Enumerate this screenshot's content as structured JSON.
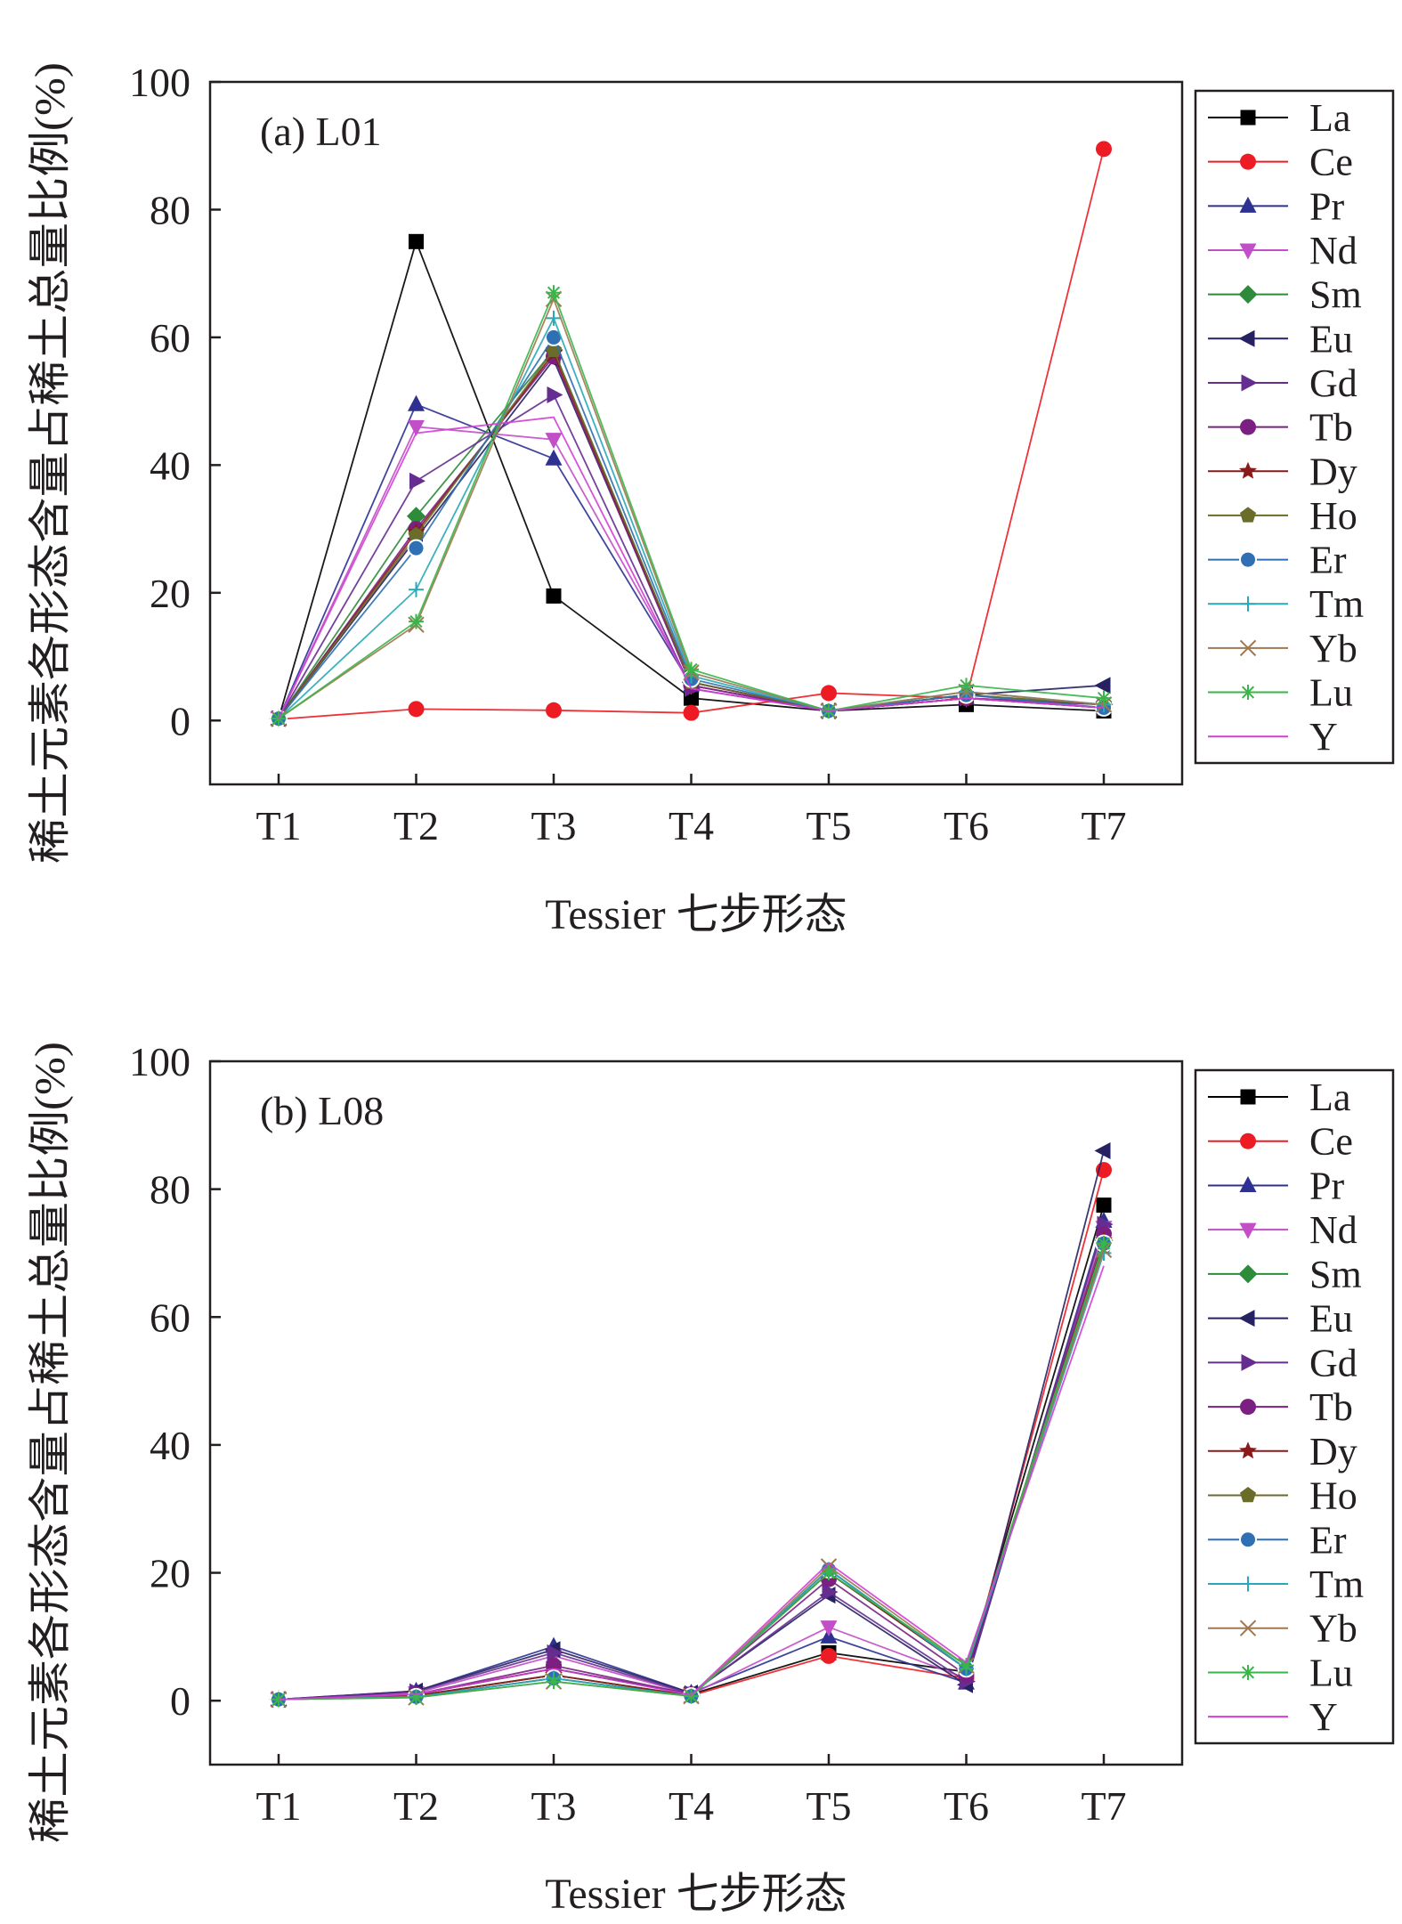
{
  "chart_data": [
    {
      "type": "line",
      "title": "(a) L01",
      "xlabel": "Tessier 七步形态",
      "ylabel": "稀土元素各形态含量占稀土总量比例(%)",
      "categories": [
        "T1",
        "T2",
        "T3",
        "T4",
        "T5",
        "T6",
        "T7"
      ],
      "yticks": [
        "0",
        "20",
        "40",
        "60",
        "80",
        "100"
      ],
      "ylim": [
        -10,
        100
      ],
      "legend_position": "right",
      "series": [
        {
          "name": "La",
          "color": "#000000",
          "marker": "square",
          "values": [
            0.3,
            75,
            19.5,
            3.5,
            1.5,
            2.5,
            1.5
          ]
        },
        {
          "name": "Ce",
          "color": "#ed1c24",
          "marker": "circle",
          "values": [
            0.2,
            1.8,
            1.6,
            1.2,
            4.3,
            3.5,
            89.5
          ]
        },
        {
          "name": "Pr",
          "color": "#2e3192",
          "marker": "triangle-up",
          "values": [
            0.3,
            49.5,
            41,
            5.5,
            1.5,
            3.5,
            2.5
          ]
        },
        {
          "name": "Nd",
          "color": "#c24fc7",
          "marker": "triangle-down",
          "values": [
            0.3,
            46,
            44,
            5.5,
            1.5,
            3.5,
            2
          ]
        },
        {
          "name": "Sm",
          "color": "#2e8b3a",
          "marker": "diamond",
          "values": [
            0.3,
            32,
            58,
            6,
            1.5,
            4,
            2.5
          ]
        },
        {
          "name": "Eu",
          "color": "#262262",
          "marker": "triangle-left",
          "values": [
            0.3,
            28.5,
            56.5,
            6,
            1.5,
            4,
            5.5
          ]
        },
        {
          "name": "Gd",
          "color": "#662d91",
          "marker": "triangle-right",
          "values": [
            0.3,
            37.5,
            51,
            5,
            1.5,
            3.5,
            2
          ]
        },
        {
          "name": "Tb",
          "color": "#7b2082",
          "marker": "circle",
          "values": [
            0.3,
            30,
            57,
            5.5,
            1.5,
            3.5,
            2.5
          ]
        },
        {
          "name": "Dy",
          "color": "#8b1a1a",
          "marker": "star",
          "values": [
            0.3,
            29.5,
            57.5,
            6,
            1.5,
            3.5,
            2
          ]
        },
        {
          "name": "Ho",
          "color": "#6b6b2a",
          "marker": "pentagon",
          "values": [
            0.3,
            29,
            58,
            6,
            1.5,
            4,
            2.5
          ]
        },
        {
          "name": "Er",
          "color": "#2f6fb3",
          "marker": "circle-dot",
          "values": [
            0.3,
            27,
            60,
            6.5,
            1.5,
            4,
            2
          ]
        },
        {
          "name": "Tm",
          "color": "#29a9b8",
          "marker": "plus",
          "values": [
            0.3,
            20.5,
            63,
            7,
            1.5,
            4.5,
            2.5
          ]
        },
        {
          "name": "Yb",
          "color": "#a07850",
          "marker": "x",
          "values": [
            0.3,
            15,
            66,
            7.5,
            1.5,
            4.5,
            2.5
          ]
        },
        {
          "name": "Lu",
          "color": "#39b54a",
          "marker": "asterisk",
          "values": [
            0.3,
            15.5,
            67,
            8,
            1.5,
            5.5,
            3.5
          ]
        },
        {
          "name": "Y",
          "color": "#d23fd6",
          "marker": "none",
          "values": [
            0.3,
            45,
            47.5,
            5,
            1.5,
            3.5,
            2
          ]
        }
      ]
    },
    {
      "type": "line",
      "title": "(b) L08",
      "xlabel": "Tessier 七步形态",
      "ylabel": "稀土元素各形态含量占稀土总量比例(%)",
      "categories": [
        "T1",
        "T2",
        "T3",
        "T4",
        "T5",
        "T6",
        "T7"
      ],
      "yticks": [
        "0",
        "20",
        "40",
        "60",
        "80",
        "100"
      ],
      "ylim": [
        -10,
        100
      ],
      "legend_position": "right",
      "series": [
        {
          "name": "La",
          "color": "#000000",
          "marker": "square",
          "values": [
            0.2,
            1,
            5,
            1,
            7.5,
            4.5,
            77.5
          ]
        },
        {
          "name": "Ce",
          "color": "#ed1c24",
          "marker": "circle",
          "values": [
            0.2,
            0.8,
            4,
            0.8,
            7,
            3.5,
            83
          ]
        },
        {
          "name": "Pr",
          "color": "#2e3192",
          "marker": "triangle-up",
          "values": [
            0.2,
            1.5,
            8.5,
            1.2,
            10,
            2.8,
            75
          ]
        },
        {
          "name": "Nd",
          "color": "#c24fc7",
          "marker": "triangle-down",
          "values": [
            0.2,
            1.2,
            7,
            1,
            11.5,
            3.5,
            74
          ]
        },
        {
          "name": "Sm",
          "color": "#2e8b3a",
          "marker": "diamond",
          "values": [
            0.2,
            0.8,
            4,
            0.8,
            20,
            5,
            72
          ]
        },
        {
          "name": "Eu",
          "color": "#262262",
          "marker": "triangle-left",
          "values": [
            0.2,
            1.5,
            8,
            1.2,
            16.5,
            2.5,
            86
          ]
        },
        {
          "name": "Gd",
          "color": "#662d91",
          "marker": "triangle-right",
          "values": [
            0.2,
            1.4,
            7.5,
            1.1,
            17,
            3,
            74.5
          ]
        },
        {
          "name": "Tb",
          "color": "#7b2082",
          "marker": "circle",
          "values": [
            0.2,
            1,
            5.5,
            1,
            19,
            4,
            73
          ]
        },
        {
          "name": "Dy",
          "color": "#8b1a1a",
          "marker": "star",
          "values": [
            0.2,
            0.8,
            4,
            0.8,
            20,
            5,
            72
          ]
        },
        {
          "name": "Ho",
          "color": "#6b6b2a",
          "marker": "pentagon",
          "values": [
            0.2,
            0.6,
            3.5,
            0.7,
            20.5,
            5,
            71
          ]
        },
        {
          "name": "Er",
          "color": "#2f6fb3",
          "marker": "circle-dot",
          "values": [
            0.2,
            0.6,
            3.5,
            0.7,
            20.5,
            5,
            71.5
          ]
        },
        {
          "name": "Tm",
          "color": "#29a9b8",
          "marker": "plus",
          "values": [
            0.2,
            0.6,
            3.5,
            0.7,
            20.5,
            5,
            70
          ]
        },
        {
          "name": "Yb",
          "color": "#a07850",
          "marker": "x",
          "values": [
            0.2,
            0.5,
            3,
            0.7,
            21,
            5.5,
            70.5
          ]
        },
        {
          "name": "Lu",
          "color": "#39b54a",
          "marker": "asterisk",
          "values": [
            0.2,
            0.5,
            3,
            0.7,
            20,
            5.5,
            71.5
          ]
        },
        {
          "name": "Y",
          "color": "#d23fd6",
          "marker": "none",
          "values": [
            0.2,
            1,
            5,
            0.9,
            21.5,
            6,
            68
          ]
        }
      ]
    }
  ]
}
